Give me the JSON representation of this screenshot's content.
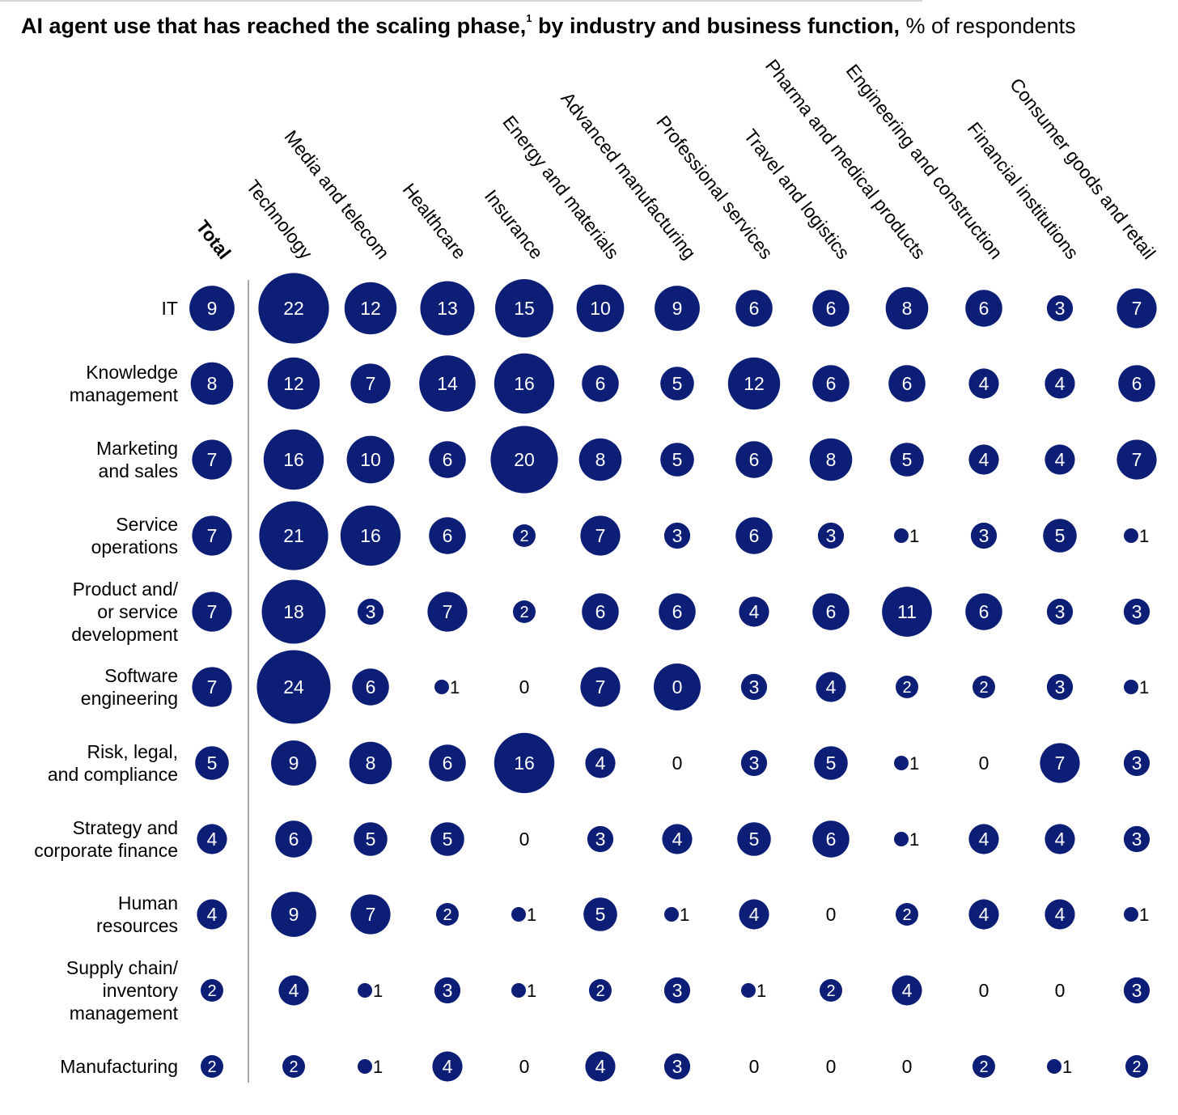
{
  "title": {
    "main": "AI agent use that has reached the scaling phase,",
    "footnote_mark": "1",
    "secondary": " by industry and business function,",
    "unit": " % of respondents"
  },
  "chart_data": {
    "type": "bubble-matrix",
    "columns": [
      "Total",
      "Technology",
      "Media and telecom",
      "Healthcare",
      "Insurance",
      "Energy and materials",
      "Advanced manufacturing",
      "Professional services",
      "Travel and logistics",
      "Pharma and medical products",
      "Engineering and construction",
      "Financial institutions",
      "Consumer goods and retail"
    ],
    "rows": [
      {
        "label": [
          "IT"
        ],
        "values": [
          9,
          22,
          12,
          13,
          15,
          10,
          9,
          6,
          6,
          8,
          6,
          3,
          7
        ]
      },
      {
        "label": [
          "Knowledge",
          "management"
        ],
        "values": [
          8,
          12,
          7,
          14,
          16,
          6,
          5,
          12,
          6,
          6,
          4,
          4,
          6
        ]
      },
      {
        "label": [
          "Marketing",
          "and sales"
        ],
        "values": [
          7,
          16,
          10,
          6,
          20,
          8,
          5,
          6,
          8,
          5,
          4,
          4,
          7
        ]
      },
      {
        "label": [
          "Service",
          "operations"
        ],
        "values": [
          7,
          21,
          16,
          6,
          2,
          7,
          3,
          6,
          3,
          1,
          3,
          5,
          1
        ]
      },
      {
        "label": [
          "Product and/",
          "or service",
          "development"
        ],
        "values": [
          7,
          18,
          3,
          7,
          2,
          6,
          6,
          4,
          6,
          11,
          6,
          3,
          3
        ]
      },
      {
        "label": [
          "Software",
          "engineering"
        ],
        "values": [
          7,
          24,
          6,
          1,
          0,
          7,
          0,
          3,
          4,
          2,
          2,
          3,
          1
        ],
        "large_zero": [
          false,
          false,
          false,
          false,
          false,
          false,
          true,
          false,
          false,
          false,
          false,
          false,
          false
        ]
      },
      {
        "label": [
          "Risk, legal,",
          "and compliance"
        ],
        "values": [
          5,
          9,
          8,
          6,
          16,
          4,
          0,
          3,
          5,
          1,
          0,
          7,
          3
        ]
      },
      {
        "label": [
          "Strategy and",
          "corporate finance"
        ],
        "values": [
          4,
          6,
          5,
          5,
          0,
          3,
          4,
          5,
          6,
          1,
          4,
          4,
          3
        ]
      },
      {
        "label": [
          "Human",
          "resources"
        ],
        "values": [
          4,
          9,
          7,
          2,
          1,
          5,
          1,
          4,
          0,
          2,
          4,
          4,
          1
        ]
      },
      {
        "label": [
          "Supply chain/",
          "inventory",
          "management"
        ],
        "values": [
          2,
          4,
          1,
          3,
          1,
          2,
          3,
          1,
          2,
          4,
          0,
          0,
          3
        ]
      },
      {
        "label": [
          "Manufacturing"
        ],
        "values": [
          2,
          2,
          1,
          4,
          0,
          4,
          3,
          0,
          0,
          0,
          2,
          1,
          2
        ]
      }
    ],
    "colors": {
      "bubble": "#0c1e76",
      "text_on_bubble": "#ffffff",
      "text": "#000000",
      "divider": "#8c8c8c"
    }
  }
}
